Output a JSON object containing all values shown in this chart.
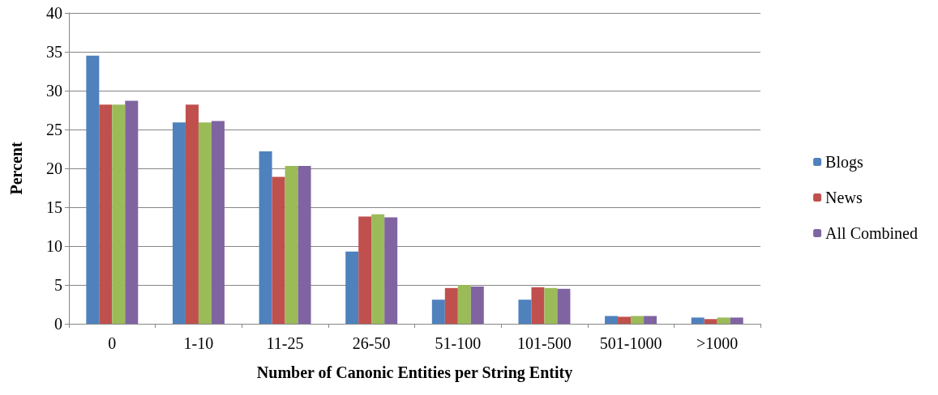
{
  "chart_data": {
    "type": "bar",
    "xlabel": "Number of Canonic Entities per String Entity",
    "ylabel": "Percent",
    "categories": [
      "0",
      "1-10",
      "11-25",
      "26-50",
      "51-100",
      "101-500",
      "501-1000",
      ">1000"
    ],
    "series": [
      {
        "name": "Blogs",
        "color": "#4f81bd",
        "values": [
          34.5,
          25.9,
          22.2,
          9.3,
          3.1,
          3.1,
          1.0,
          0.8
        ]
      },
      {
        "name": "News",
        "color": "#c0504d",
        "values": [
          28.2,
          28.2,
          18.9,
          13.8,
          4.6,
          4.7,
          0.9,
          0.6
        ]
      },
      {
        "color": "#9bbb59",
        "values": [
          28.2,
          25.9,
          20.3,
          14.1,
          5.0,
          4.6,
          1.0,
          0.8
        ]
      },
      {
        "name": "All Combined",
        "color": "#8064a2",
        "values": [
          28.7,
          26.1,
          20.3,
          13.7,
          4.8,
          4.5,
          1.0,
          0.8
        ]
      }
    ],
    "ylim": [
      0,
      40
    ],
    "yticks": [
      0,
      5,
      10,
      15,
      20,
      25,
      30,
      35,
      40
    ],
    "grid": "y",
    "legend": "right"
  }
}
